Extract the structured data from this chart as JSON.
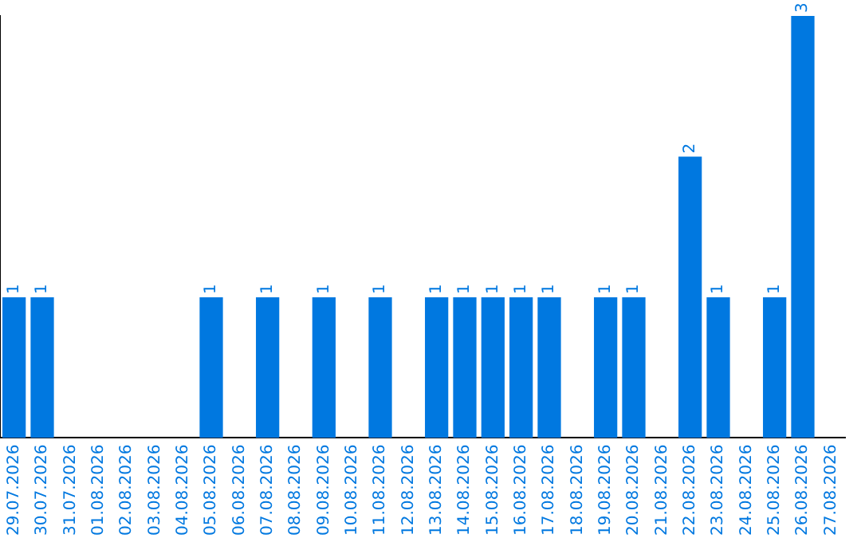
{
  "chart_data": {
    "type": "bar",
    "categories": [
      "29.07.2026",
      "30.07.2026",
      "31.07.2026",
      "01.08.2026",
      "02.08.2026",
      "03.08.2026",
      "04.08.2026",
      "05.08.2026",
      "06.08.2026",
      "07.08.2026",
      "08.08.2026",
      "09.08.2026",
      "10.08.2026",
      "11.08.2026",
      "12.08.2026",
      "13.08.2026",
      "14.08.2026",
      "15.08.2026",
      "16.08.2026",
      "17.08.2026",
      "18.08.2026",
      "19.08.2026",
      "20.08.2026",
      "21.08.2026",
      "22.08.2026",
      "23.08.2026",
      "24.08.2026",
      "25.08.2026",
      "26.08.2026",
      "27.08.2026"
    ],
    "values": [
      1,
      1,
      0,
      0,
      0,
      0,
      0,
      1,
      0,
      1,
      0,
      1,
      0,
      1,
      0,
      1,
      1,
      1,
      1,
      1,
      0,
      1,
      1,
      0,
      2,
      1,
      0,
      1,
      3,
      0
    ],
    "value_labels": [
      "1",
      "1",
      null,
      null,
      null,
      null,
      null,
      "1",
      null,
      "1",
      null,
      "1",
      null,
      "1",
      null,
      "1",
      "1",
      "1",
      "1",
      "1",
      null,
      "1",
      "1",
      null,
      "2",
      "1",
      null,
      "1",
      "3",
      null
    ],
    "color": "#0078e0",
    "grid": false,
    "legend": false,
    "tick_labels": "x"
  }
}
